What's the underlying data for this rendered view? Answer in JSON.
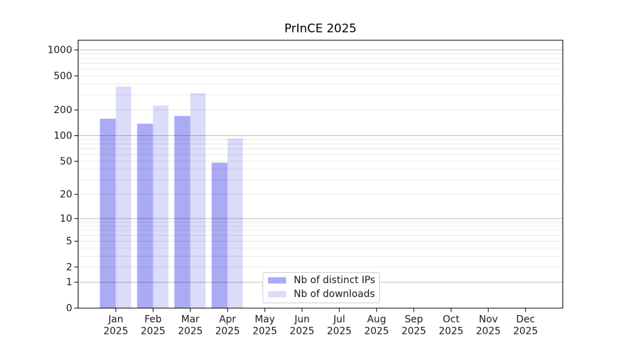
{
  "chart_data": {
    "type": "bar",
    "title": "PrInCE 2025",
    "categories": [
      {
        "month": "Jan",
        "year": "2025"
      },
      {
        "month": "Feb",
        "year": "2025"
      },
      {
        "month": "Mar",
        "year": "2025"
      },
      {
        "month": "Apr",
        "year": "2025"
      },
      {
        "month": "May",
        "year": "2025"
      },
      {
        "month": "Jun",
        "year": "2025"
      },
      {
        "month": "Jul",
        "year": "2025"
      },
      {
        "month": "Aug",
        "year": "2025"
      },
      {
        "month": "Sep",
        "year": "2025"
      },
      {
        "month": "Oct",
        "year": "2025"
      },
      {
        "month": "Nov",
        "year": "2025"
      },
      {
        "month": "Dec",
        "year": "2025"
      }
    ],
    "series": [
      {
        "name": "Nb of distinct IPs",
        "color": "#AAAAF5",
        "values": [
          158,
          138,
          170,
          48,
          0,
          0,
          0,
          0,
          0,
          0,
          0,
          0
        ]
      },
      {
        "name": "Nb of downloads",
        "color": "#DBDBFA",
        "values": [
          375,
          225,
          315,
          93,
          0,
          0,
          0,
          0,
          0,
          0,
          0,
          0
        ]
      }
    ],
    "y_axis": {
      "scale": "log10(1+value)",
      "tick_values": [
        0,
        1,
        2,
        5,
        10,
        20,
        50,
        100,
        200,
        500,
        1000
      ],
      "tick_labels": [
        "0",
        "1",
        "2",
        "5",
        "10",
        "20",
        "50",
        "100",
        "200",
        "500",
        "1000"
      ],
      "major_grid_values": [
        1,
        10,
        100,
        1000
      ],
      "minor_grid_values": [
        2,
        3,
        4,
        5,
        6,
        7,
        8,
        9,
        20,
        30,
        40,
        50,
        60,
        70,
        80,
        90,
        200,
        300,
        400,
        500,
        600,
        700,
        800,
        900
      ],
      "ylim": [
        0,
        1300
      ]
    },
    "xlabel": "",
    "ylabel": "",
    "legend": {
      "position": "inside-bottom-center",
      "entries": [
        "Nb of distinct IPs",
        "Nb of downloads"
      ]
    },
    "grid": true
  },
  "colors": {
    "bar_distinct_ips": "#AAAAF5",
    "bar_downloads": "#DBDBFA",
    "grid_major": "#bdbdbd",
    "grid_minor": "#e8e8e8",
    "axis": "#000000",
    "text": "#1a1a1a",
    "legend_border": "#cfcfcf",
    "background": "#ffffff"
  }
}
